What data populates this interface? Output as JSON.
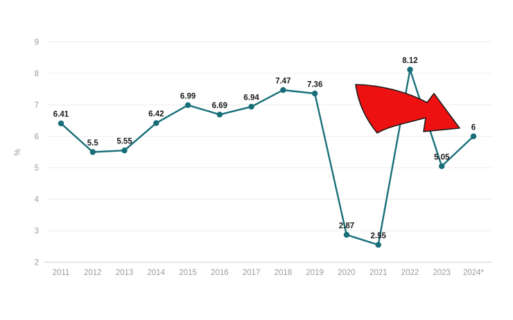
{
  "page": {
    "background": "#ffffff"
  },
  "chart": {
    "colors": {
      "line": "#176e79",
      "marker": "#176e79",
      "value_label": "#1a1a1a",
      "axis_text": "#9a9a9a",
      "gridline": "#ededed",
      "axis_line": "#dbe0e2",
      "arrow_fill": "#ee1111",
      "arrow_stroke": "#1c1c1c",
      "background": "#ffffff"
    }
  },
  "chart_data": {
    "type": "line",
    "title": "",
    "xlabel": "",
    "ylabel": "%",
    "x": [
      "2011",
      "2012",
      "2013",
      "2014",
      "2015",
      "2016",
      "2017",
      "2018",
      "2019",
      "2020",
      "2021",
      "2022",
      "2023",
      "2024*"
    ],
    "values": [
      6.41,
      5.5,
      5.55,
      6.42,
      6.99,
      6.69,
      6.94,
      7.47,
      7.36,
      2.87,
      2.55,
      8.12,
      5.05,
      6
    ],
    "point_labels": [
      "6.41",
      "5.5",
      "5.55",
      "6.42",
      "6.99",
      "6.69",
      "6.94",
      "7.47",
      "7.36",
      "2.87",
      "2.55",
      "8.12",
      "5.05",
      "6"
    ],
    "ylim": [
      2,
      9
    ],
    "yticks": [
      2,
      3,
      4,
      5,
      6,
      7,
      8,
      9
    ],
    "grid": true,
    "legend": false,
    "annotations": [
      {
        "type": "curved-block-arrow",
        "direction": "down-right",
        "color": "red",
        "spans_x": [
          "2021",
          "2023"
        ],
        "spans_y": [
          5.8,
          7.7
        ]
      }
    ]
  }
}
